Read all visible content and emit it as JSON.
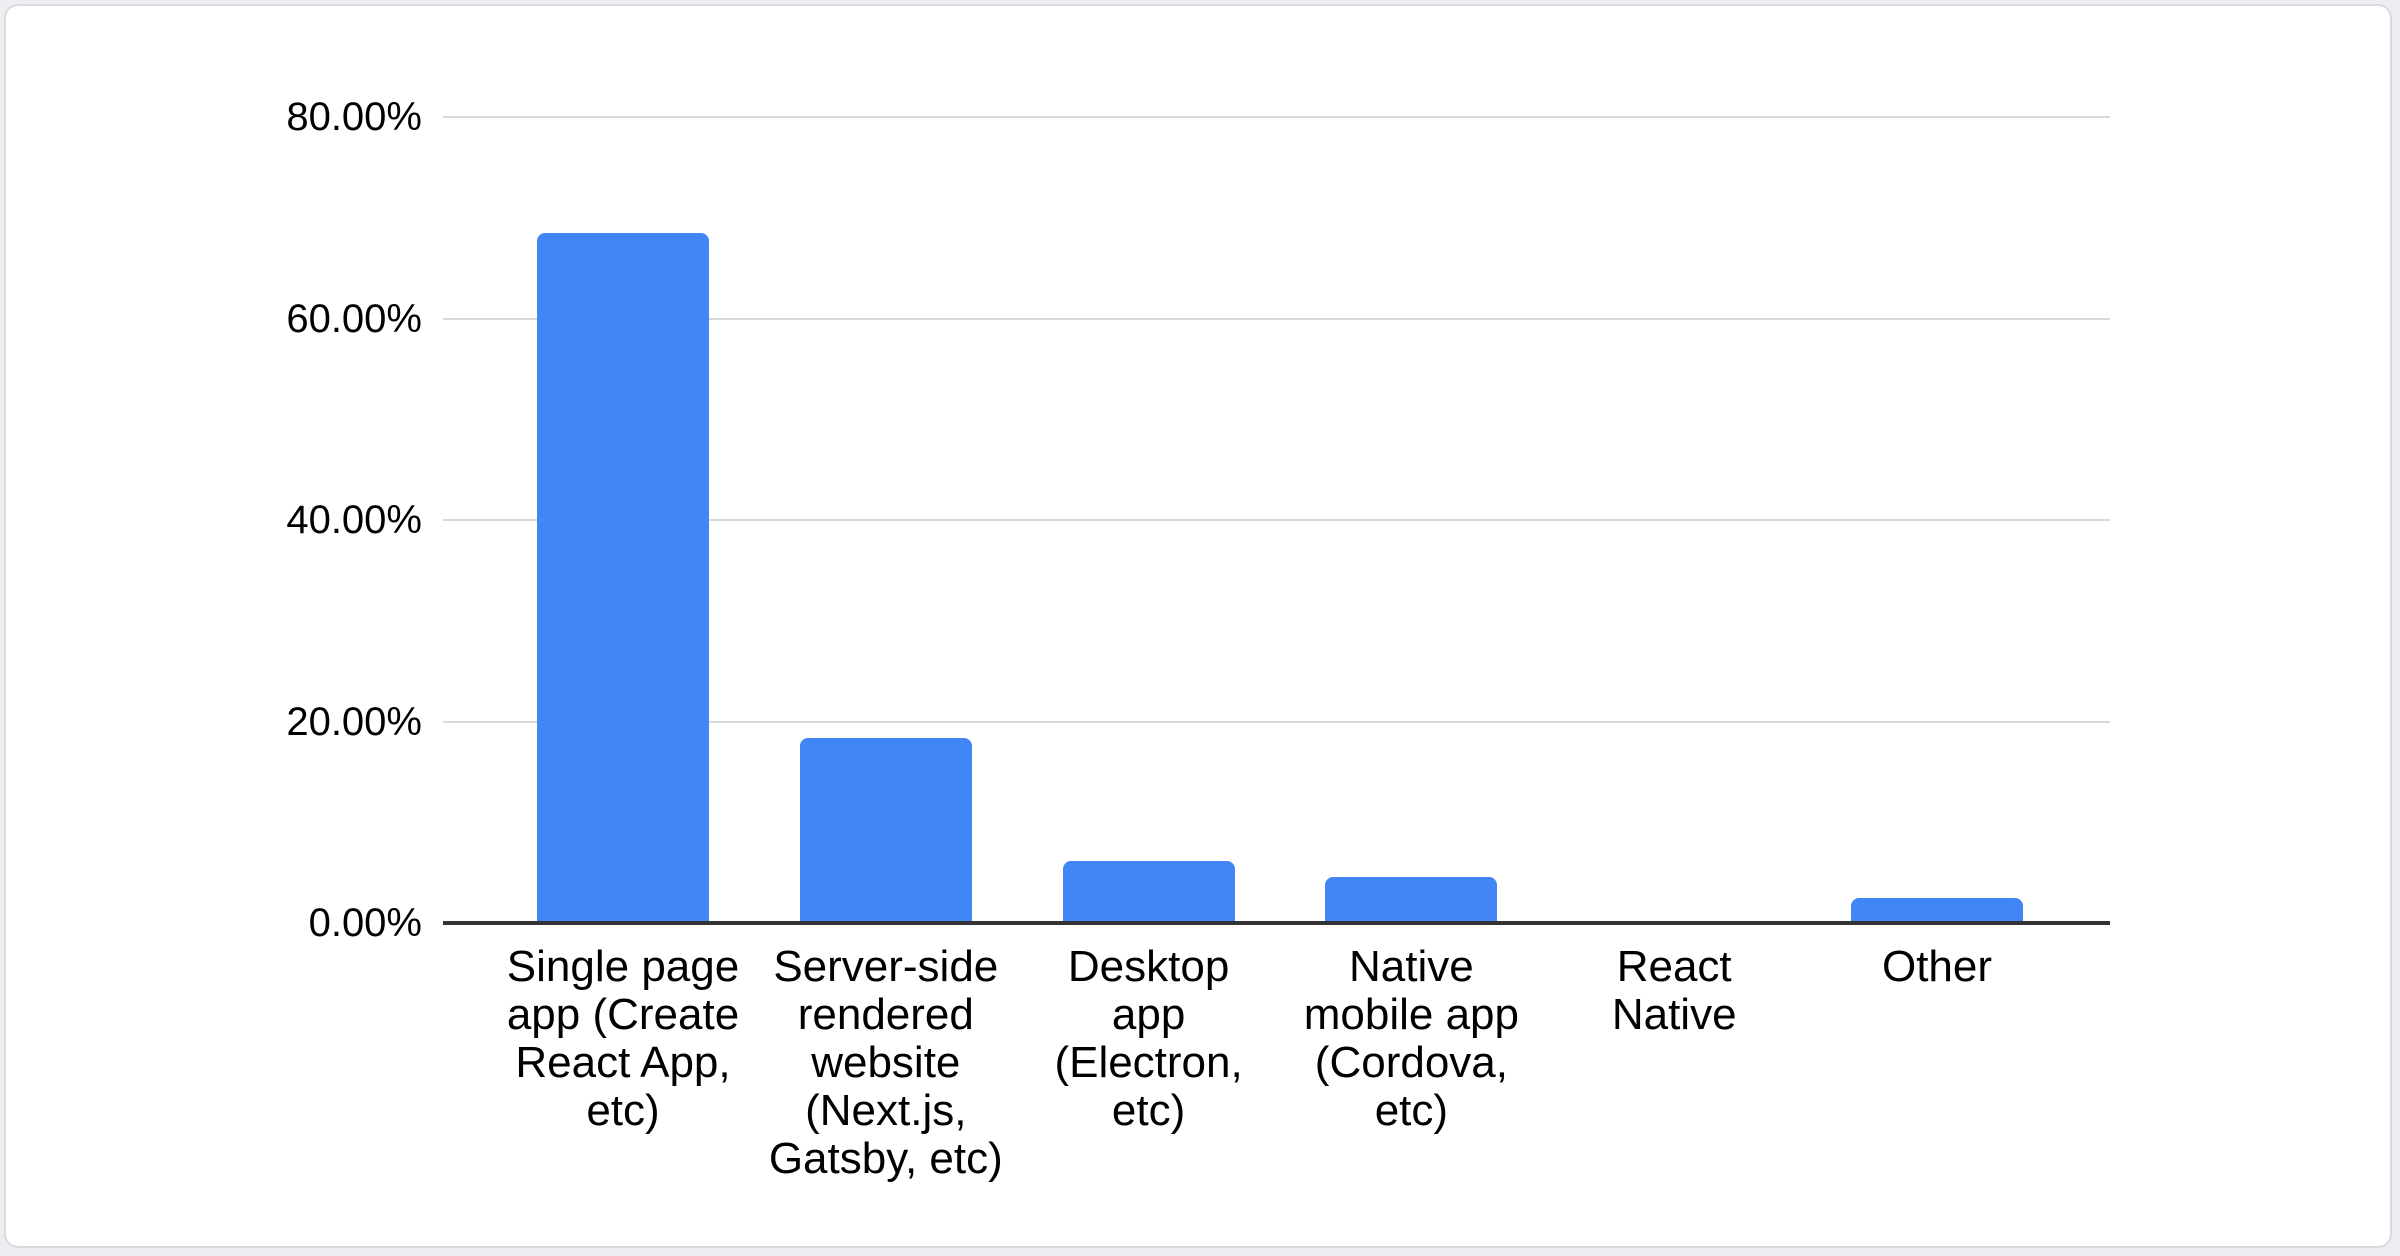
{
  "chart_data": {
    "type": "bar",
    "title": "",
    "xlabel": "",
    "ylabel": "",
    "categories": [
      "Single page app (Create React App, etc)",
      "Server-side rendered website (Next.js, Gatsby, etc)",
      "Desktop app (Electron, etc)",
      "Native mobile app (Cordova, etc)",
      "React Native",
      "Other"
    ],
    "category_display_lines": [
      "Single page\napp (Create\nReact App,\netc)",
      "Server-side\nrendered\nwebsite\n(Next.js,\nGatsby, etc)",
      "Desktop\napp\n(Electron,\netc)",
      "Native\nmobile app\n(Cordova,\netc)",
      "React\nNative",
      "Other"
    ],
    "values": [
      68.5,
      18.4,
      6.2,
      4.6,
      0,
      2.5
    ],
    "value_unit": "percent",
    "ylim": [
      0,
      80
    ],
    "ytick_step": 20,
    "ytick_labels": [
      "0.00%",
      "20.00%",
      "40.00%",
      "60.00%",
      "80.00%"
    ],
    "grid": true,
    "legend": false,
    "colors": {
      "bar": "#4285f4",
      "gridline": "#d9d9d9",
      "axis_line": "#333333",
      "text": "#000000",
      "card_background": "#ffffff",
      "card_border": "#d9dade"
    }
  }
}
